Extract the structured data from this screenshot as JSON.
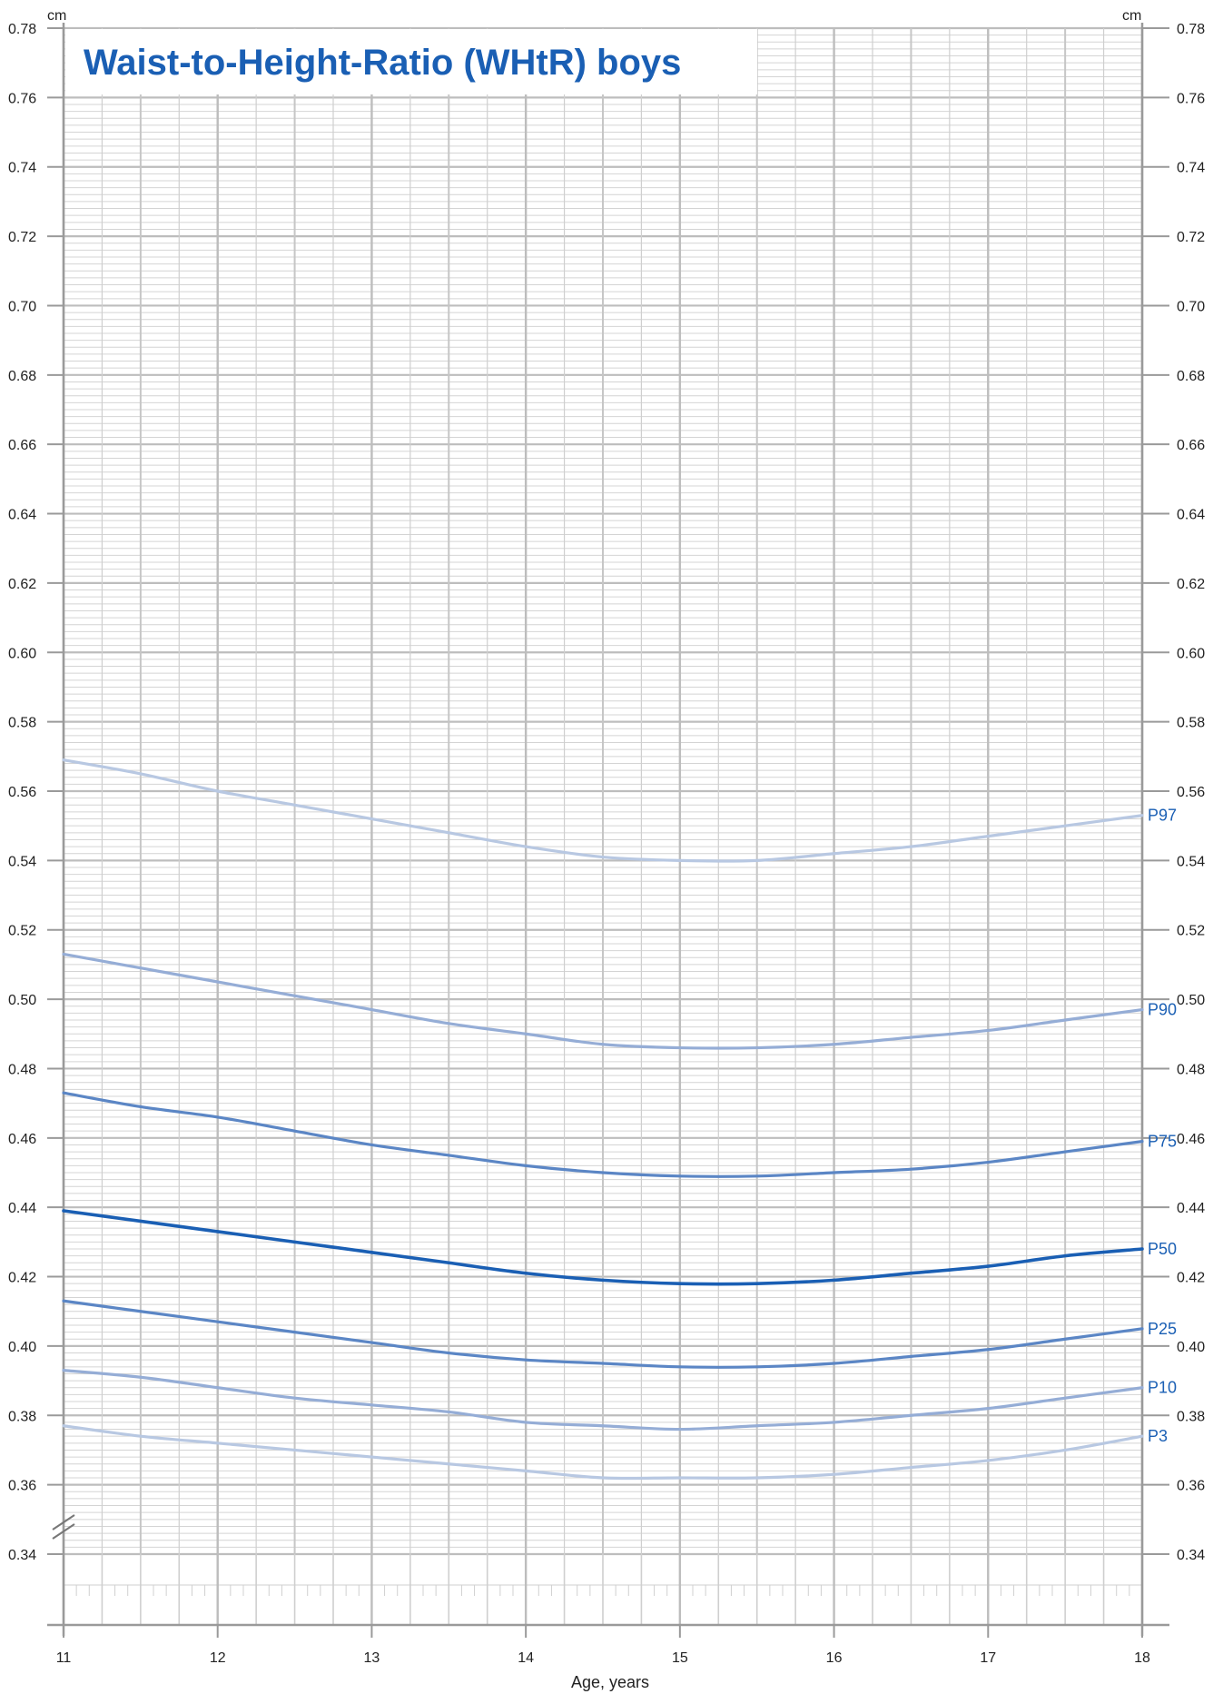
{
  "chart_data": {
    "type": "line",
    "title": "Waist-to-Height-Ratio (WHtR) boys",
    "title_color": "#1a5fb4",
    "xlabel": "Age, years",
    "ylabel_left": "cm",
    "ylabel_right": "cm",
    "xlim": [
      11,
      18
    ],
    "ylim": [
      0.34,
      0.78
    ],
    "x_ticks": [
      11,
      12,
      13,
      14,
      15,
      16,
      17,
      18
    ],
    "x_tick_labels": [
      "11",
      "12",
      "13",
      "14",
      "15",
      "16",
      "17",
      "18"
    ],
    "y_ticks": [
      0.34,
      0.36,
      0.38,
      0.4,
      0.42,
      0.44,
      0.46,
      0.48,
      0.5,
      0.52,
      0.54,
      0.56,
      0.58,
      0.6,
      0.62,
      0.64,
      0.66,
      0.68,
      0.7,
      0.72,
      0.74,
      0.76,
      0.78
    ],
    "y_tick_labels": [
      "0.34",
      "0.36",
      "0.38",
      "0.40",
      "0.42",
      "0.44",
      "0.46",
      "0.48",
      "0.50",
      "0.52",
      "0.54",
      "0.56",
      "0.58",
      "0.60",
      "0.62",
      "0.64",
      "0.66",
      "0.68",
      "0.70",
      "0.72",
      "0.74",
      "0.76",
      "0.78"
    ],
    "grid": true,
    "axis_break": true,
    "x": [
      11,
      11.5,
      12,
      12.5,
      13,
      13.5,
      14,
      14.5,
      15,
      15.5,
      16,
      16.5,
      17,
      17.5,
      18
    ],
    "series": [
      {
        "name": "P97",
        "color": "#b8c8e2",
        "values": [
          0.569,
          0.565,
          0.56,
          0.556,
          0.552,
          0.548,
          0.544,
          0.541,
          0.54,
          0.54,
          0.542,
          0.544,
          0.547,
          0.55,
          0.553
        ]
      },
      {
        "name": "P90",
        "color": "#95add6",
        "values": [
          0.513,
          0.509,
          0.505,
          0.501,
          0.497,
          0.493,
          0.49,
          0.487,
          0.486,
          0.486,
          0.487,
          0.489,
          0.491,
          0.494,
          0.497
        ]
      },
      {
        "name": "P75",
        "color": "#5b86c5",
        "values": [
          0.473,
          0.469,
          0.466,
          0.462,
          0.458,
          0.455,
          0.452,
          0.45,
          0.449,
          0.449,
          0.45,
          0.451,
          0.453,
          0.456,
          0.459
        ]
      },
      {
        "name": "P50",
        "color": "#1a5fb4",
        "values": [
          0.439,
          0.436,
          0.433,
          0.43,
          0.427,
          0.424,
          0.421,
          0.419,
          0.418,
          0.418,
          0.419,
          0.421,
          0.423,
          0.426,
          0.428
        ]
      },
      {
        "name": "P25",
        "color": "#5b86c5",
        "values": [
          0.413,
          0.41,
          0.407,
          0.404,
          0.401,
          0.398,
          0.396,
          0.395,
          0.394,
          0.394,
          0.395,
          0.397,
          0.399,
          0.402,
          0.405
        ]
      },
      {
        "name": "P10",
        "color": "#95add6",
        "values": [
          0.393,
          0.391,
          0.388,
          0.385,
          0.383,
          0.381,
          0.378,
          0.377,
          0.376,
          0.377,
          0.378,
          0.38,
          0.382,
          0.385,
          0.388
        ]
      },
      {
        "name": "P3",
        "color": "#b8c8e2",
        "values": [
          0.377,
          0.374,
          0.372,
          0.37,
          0.368,
          0.366,
          0.364,
          0.362,
          0.362,
          0.362,
          0.363,
          0.365,
          0.367,
          0.37,
          0.374
        ]
      }
    ]
  }
}
